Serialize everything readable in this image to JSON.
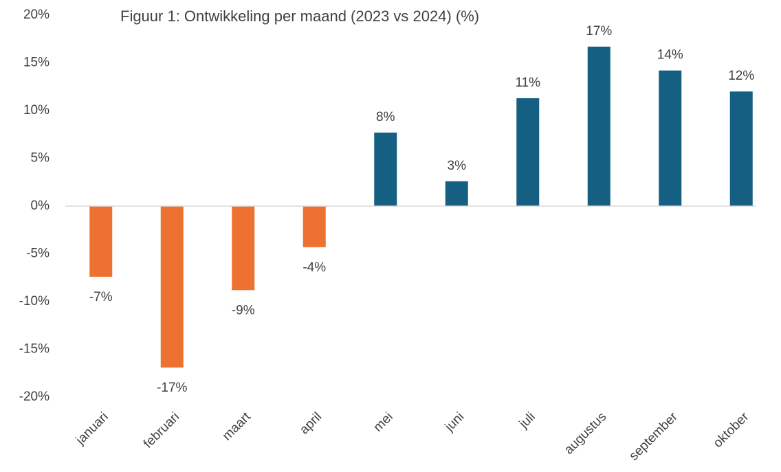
{
  "chart_data": {
    "type": "bar",
    "title": "Figuur 1: Ontwikkeling per maand (2023 vs 2024) (%)",
    "categories": [
      "januari",
      "februari",
      "maart",
      "april",
      "mei",
      "juni",
      "juli",
      "augustus",
      "september",
      "oktober"
    ],
    "values": [
      -7.4,
      -16.9,
      -8.8,
      -4.3,
      7.7,
      2.6,
      11.3,
      16.7,
      14.2,
      12.0
    ],
    "value_labels": [
      "-7%",
      "-17%",
      "-9%",
      "-4%",
      "8%",
      "3%",
      "11%",
      "17%",
      "14%",
      "12%"
    ],
    "colors": [
      "#ed7231",
      "#ed7231",
      "#ed7231",
      "#ed7231",
      "#155f82",
      "#155f82",
      "#155f82",
      "#155f82",
      "#155f82",
      "#155f82"
    ],
    "ylim": [
      -20,
      20
    ],
    "yticks": [
      {
        "value": -20,
        "label": "-20%"
      },
      {
        "value": -15,
        "label": "-15%"
      },
      {
        "value": -10,
        "label": "-10%"
      },
      {
        "value": -5,
        "label": "-5%"
      },
      {
        "value": 0,
        "label": "0%"
      },
      {
        "value": 5,
        "label": "5%"
      },
      {
        "value": 10,
        "label": "10%"
      },
      {
        "value": 15,
        "label": "15%"
      },
      {
        "value": 20,
        "label": "20%"
      }
    ],
    "grid": false
  }
}
